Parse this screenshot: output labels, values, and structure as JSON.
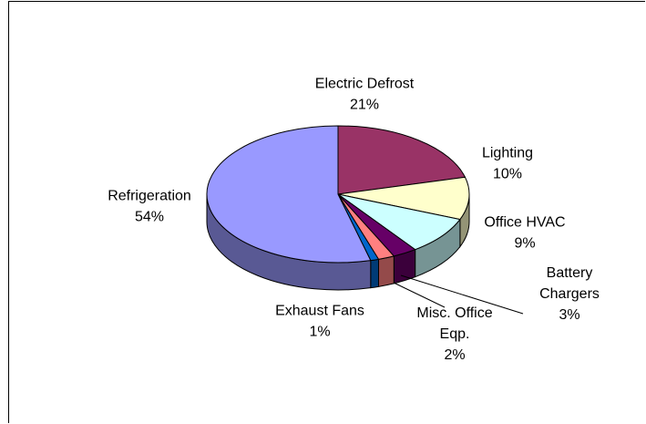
{
  "chart_data": {
    "type": "pie",
    "title": "",
    "slices": [
      {
        "label": "Electric Defrost",
        "value": 21,
        "value_text": "21%",
        "color": "#993366"
      },
      {
        "label": "Lighting",
        "value": 10,
        "value_text": "10%",
        "color": "#FFFFCC"
      },
      {
        "label": "Office HVAC",
        "value": 9,
        "value_text": "9%",
        "color": "#CCFFFF"
      },
      {
        "label": "Battery Chargers",
        "value": 3,
        "value_text": "3%",
        "color": "#660066"
      },
      {
        "label": "Misc. Office Eqp.",
        "value": 2,
        "value_text": "2%",
        "color": "#FF8080"
      },
      {
        "label": "Exhaust Fans",
        "value": 1,
        "value_text": "1%",
        "color": "#0066CC"
      },
      {
        "label": "Refrigeration",
        "value": 54,
        "value_text": "54%",
        "color": "#9999FF"
      }
    ],
    "three_d": true,
    "legend": "none"
  }
}
